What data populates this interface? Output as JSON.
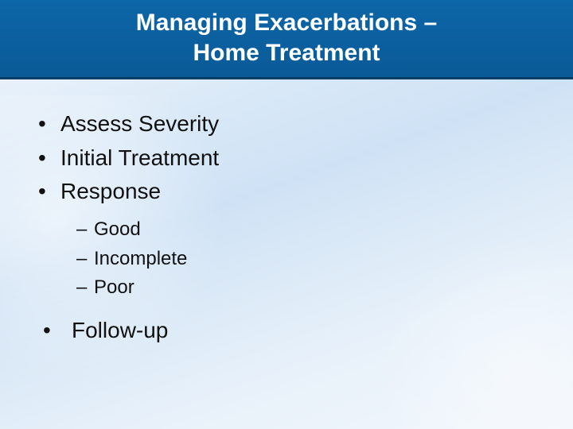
{
  "title": {
    "line1": "Managing Exacerbations –",
    "line2": "Home Treatment",
    "bg_color": "#0c609f",
    "border_color": "#083e66",
    "text_color": "#ffffff",
    "font_size_pt": 30,
    "font_weight": 700
  },
  "background": {
    "gradient_stops": [
      "#f0f6fc",
      "#e6f0fa",
      "#d8e8f7",
      "#cfe2f5",
      "#dceaf7",
      "#e8f1fa",
      "#f2f7fc"
    ]
  },
  "bullets": {
    "level1_font_size_pt": 28,
    "level2_font_size_pt": 24,
    "text_color": "#111111",
    "items": [
      {
        "text": "Assess Severity"
      },
      {
        "text": "Initial Treatment"
      },
      {
        "text": "Response",
        "children": [
          {
            "text": "Good"
          },
          {
            "text": "Incomplete"
          },
          {
            "text": "Poor"
          }
        ]
      },
      {
        "text": "Follow-up",
        "indented": true
      }
    ]
  }
}
